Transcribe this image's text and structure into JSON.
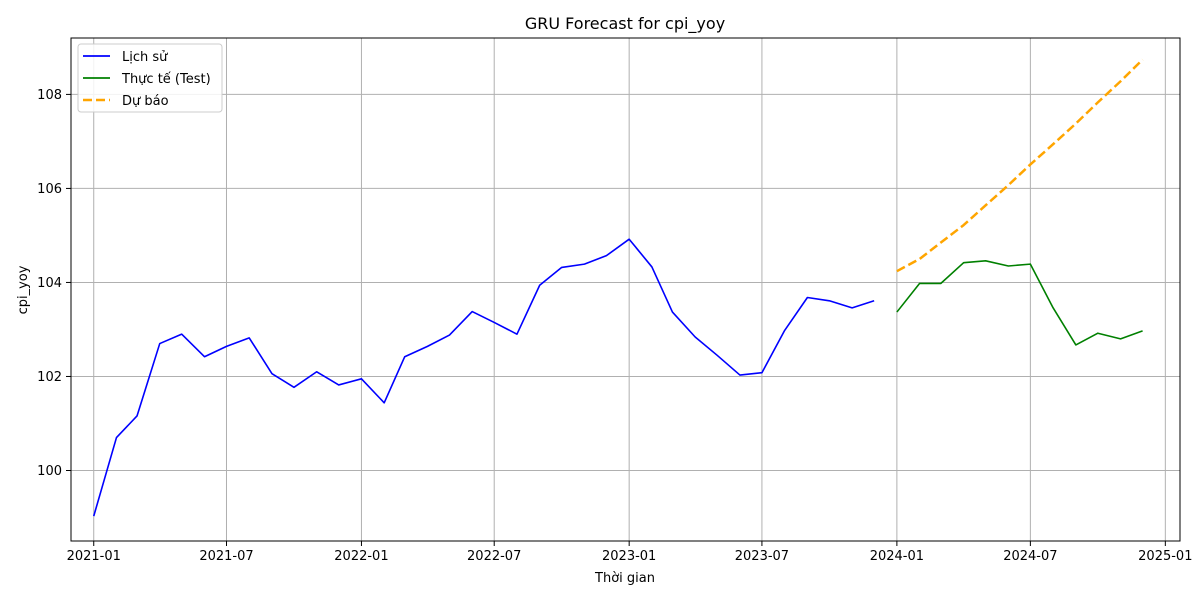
{
  "chart_data": {
    "type": "line",
    "title": "GRU Forecast for cpi_yoy",
    "xlabel": "Thời gian",
    "ylabel": "cpi_yoy",
    "x_range": [
      "2020-12-01",
      "2025-01-21"
    ],
    "ylim": [
      98.5,
      109.2
    ],
    "grid": true,
    "legend_position": "top-left",
    "x_ticks": [
      "2021-01",
      "2021-07",
      "2022-01",
      "2022-07",
      "2023-01",
      "2023-07",
      "2024-01",
      "2024-07",
      "2025-01"
    ],
    "y_ticks": [
      100,
      102,
      104,
      106,
      108
    ],
    "series": [
      {
        "name": "Lịch sử",
        "color": "#0000ff",
        "dash": "solid",
        "x": [
          "2021-01-01",
          "2021-02-01",
          "2021-03-01",
          "2021-04-01",
          "2021-05-01",
          "2021-06-01",
          "2021-07-01",
          "2021-08-01",
          "2021-09-01",
          "2021-10-01",
          "2021-11-01",
          "2021-12-01",
          "2022-01-01",
          "2022-02-01",
          "2022-03-01",
          "2022-04-01",
          "2022-05-01",
          "2022-06-01",
          "2022-07-01",
          "2022-08-01",
          "2022-09-01",
          "2022-10-01",
          "2022-11-01",
          "2022-12-01",
          "2023-01-01",
          "2023-02-01",
          "2023-03-01",
          "2023-04-01",
          "2023-05-01",
          "2023-06-01",
          "2023-07-01",
          "2023-08-01",
          "2023-09-01",
          "2023-10-01",
          "2023-11-01",
          "2023-12-01"
        ],
        "y": [
          99.03,
          100.7,
          101.16,
          102.7,
          102.9,
          102.42,
          102.64,
          102.82,
          102.06,
          101.77,
          102.1,
          101.82,
          101.95,
          101.44,
          102.42,
          102.64,
          102.88,
          103.38,
          103.15,
          102.9,
          103.94,
          104.32,
          104.39,
          104.57,
          104.92,
          104.33,
          103.37,
          102.84,
          102.45,
          102.03,
          102.08,
          102.98,
          103.68,
          103.61,
          103.46,
          103.61
        ]
      },
      {
        "name": "Thực tế (Test)",
        "color": "#008000",
        "dash": "solid",
        "x": [
          "2024-01-01",
          "2024-02-01",
          "2024-03-01",
          "2024-04-01",
          "2024-05-01",
          "2024-06-01",
          "2024-07-01",
          "2024-08-01",
          "2024-09-01",
          "2024-10-01",
          "2024-11-01",
          "2024-12-01"
        ],
        "y": [
          103.37,
          103.98,
          103.98,
          104.42,
          104.46,
          104.35,
          104.39,
          103.46,
          102.67,
          102.92,
          102.8,
          102.97
        ]
      },
      {
        "name": "Dự báo",
        "color": "#ffa500",
        "dash": "dashed",
        "x": [
          "2024-01-01",
          "2024-02-01",
          "2024-03-01",
          "2024-04-01",
          "2024-05-01",
          "2024-06-01",
          "2024-07-01",
          "2024-08-01",
          "2024-09-01",
          "2024-10-01",
          "2024-11-01",
          "2024-12-01"
        ],
        "y": [
          104.24,
          104.5,
          104.85,
          105.22,
          105.64,
          106.07,
          106.51,
          106.94,
          107.38,
          107.83,
          108.28,
          108.74
        ]
      }
    ]
  }
}
